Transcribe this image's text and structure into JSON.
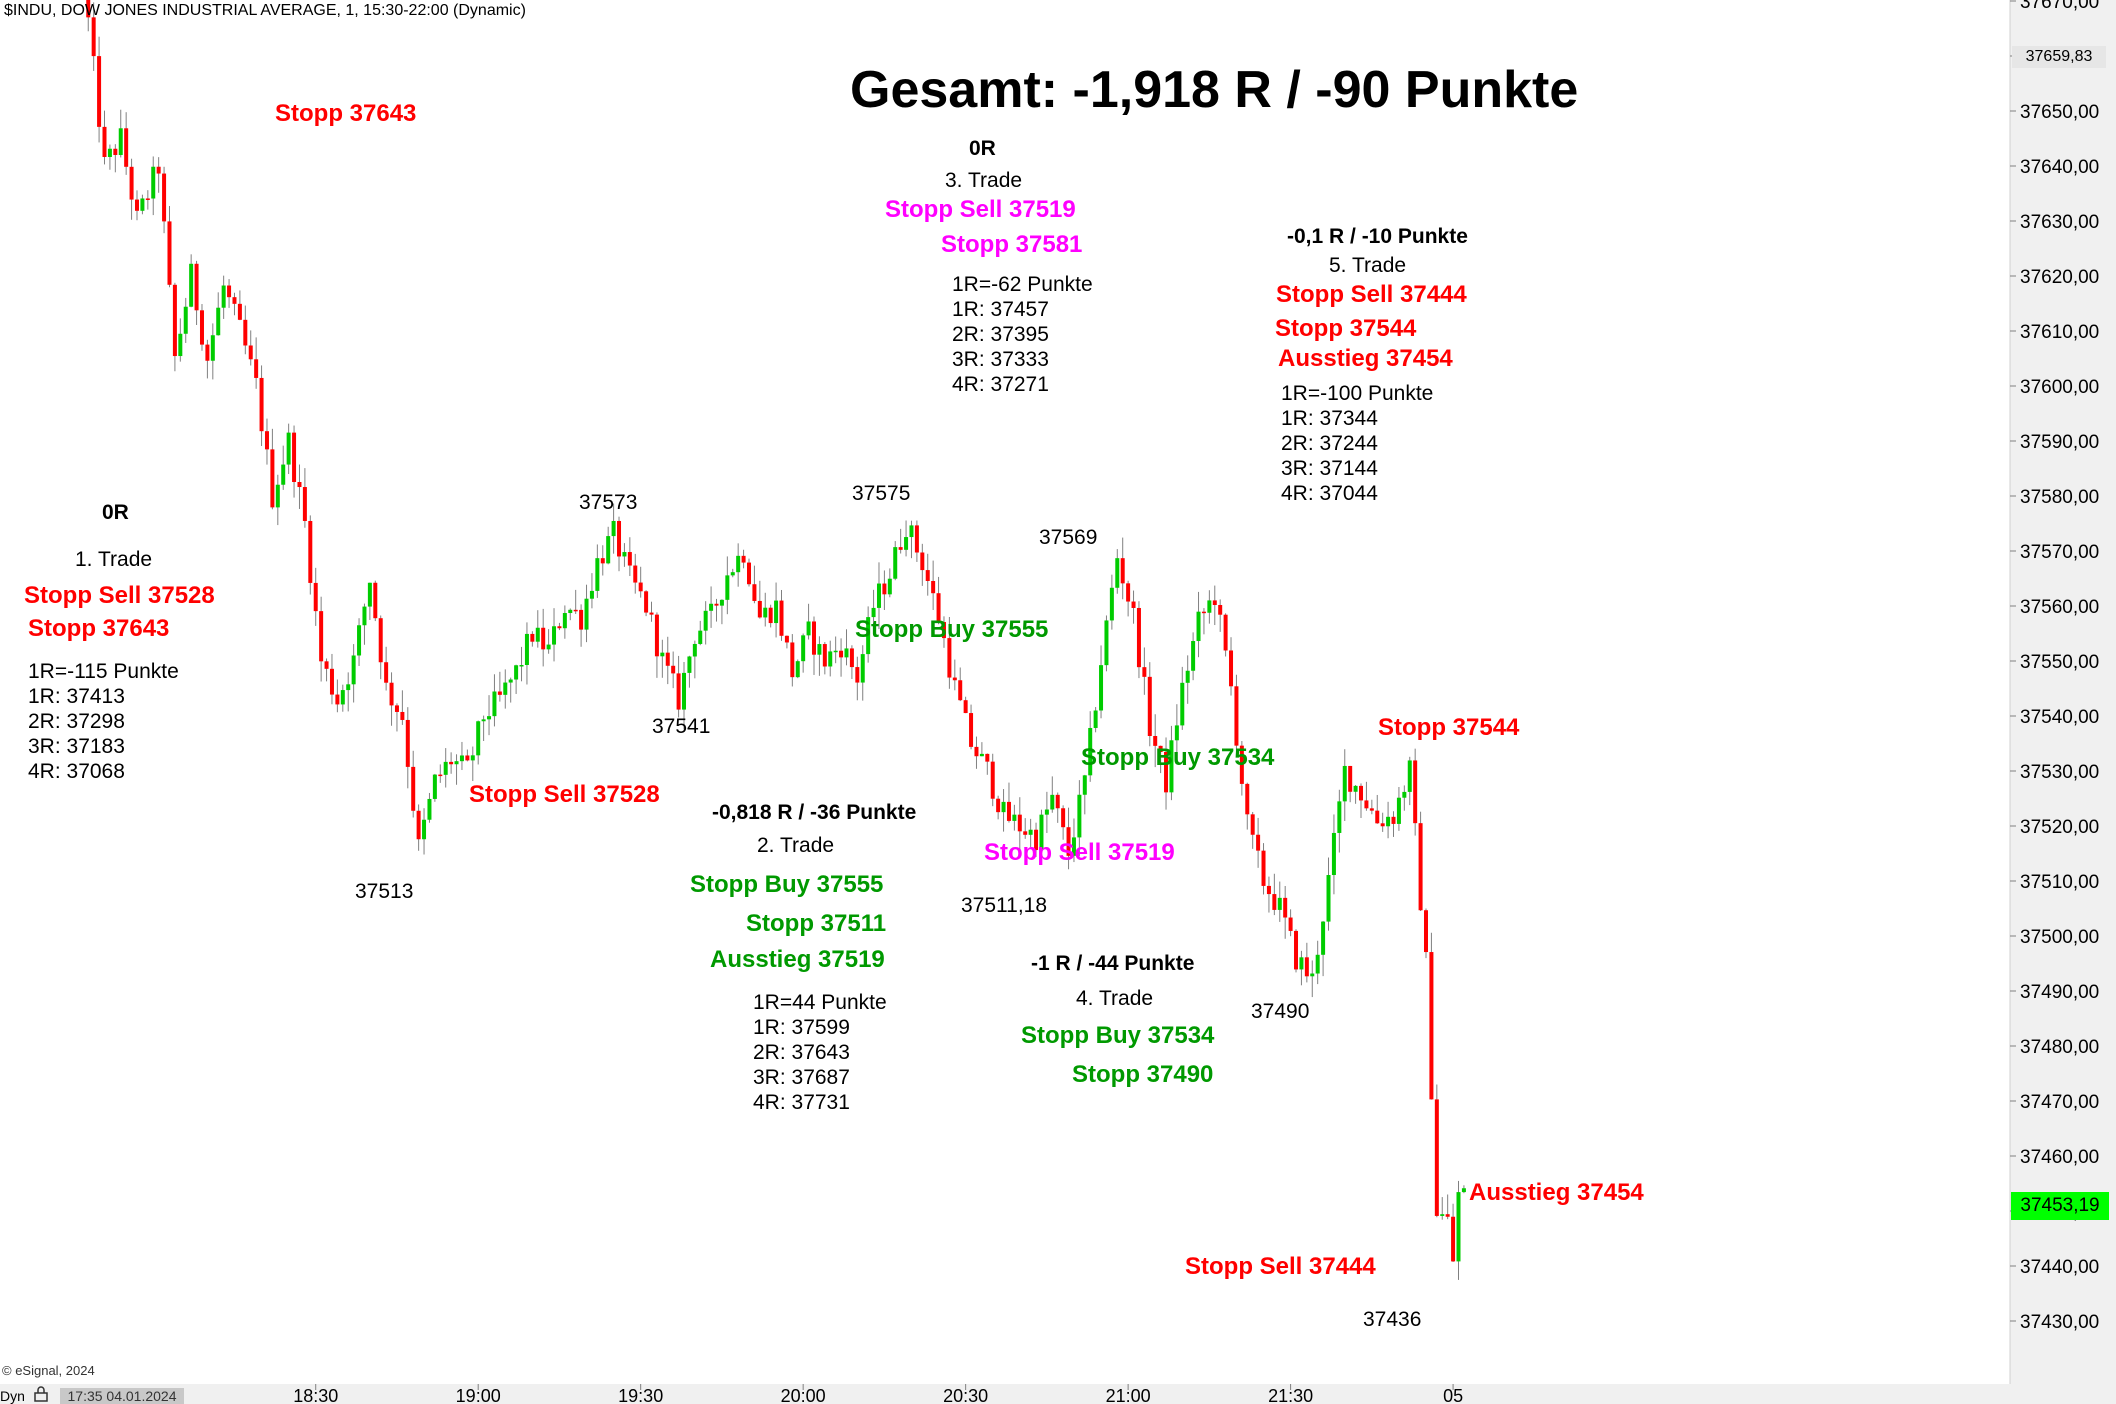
{
  "header": {
    "title": "$INDU, DOW JONES INDUSTRIAL AVERAGE, 1, 15:30-22:00 (Dynamic)"
  },
  "main_title": "Gesamt: -1,918 R / -90 Punkte",
  "footer": {
    "copyright": "© eSignal, 2024",
    "timestamp": "17:35 04.01.2024",
    "mode_label": "Dyn"
  },
  "price_tags": {
    "high": "37659,83",
    "last": "37453,19",
    "last_color": "#00ff00"
  },
  "colors": {
    "up": "#00cc00",
    "down": "#ff0000",
    "wick": "#808080",
    "pink": "#ff00ff",
    "green_text": "#009900"
  },
  "annotations": {
    "trade1": {
      "result": "0R",
      "name": "1. Trade",
      "entry": "Stopp Sell 37528",
      "stop": "Stopp 37643",
      "lines": [
        "1R=-115 Punkte",
        "1R: 37413",
        "2R: 37298",
        "3R: 37183",
        "4R: 37068"
      ]
    },
    "trade2": {
      "result": "-0,818 R / -36 Punkte",
      "name": "2. Trade",
      "entry": "Stopp Buy 37555",
      "stop": "Stopp 37511",
      "exit": "Ausstieg 37519",
      "lines": [
        "1R=44 Punkte",
        "1R: 37599",
        "2R: 37643",
        "3R: 37687",
        "4R: 37731"
      ]
    },
    "trade3": {
      "result": "0R",
      "name": "3. Trade",
      "entry": "Stopp Sell 37519",
      "stop": "Stopp 37581",
      "lines": [
        "1R=-62 Punkte",
        "1R: 37457",
        "2R: 37395",
        "3R: 37333",
        "4R: 37271"
      ]
    },
    "trade4": {
      "result": "-1 R / -44 Punkte",
      "name": "4. Trade",
      "entry": "Stopp Buy 37534",
      "stop": "Stopp 37490"
    },
    "trade5": {
      "result": "-0,1 R / -10 Punkte",
      "name": "5. Trade",
      "entry": "Stopp Sell 37444",
      "stop": "Stopp 37544",
      "exit": "Ausstieg 37454",
      "lines": [
        "1R=-100 Punkte",
        "1R: 37344",
        "2R: 37244",
        "3R: 37144",
        "4R: 37044"
      ]
    },
    "on_chart": {
      "stopp_top": "Stopp 37643",
      "sell_37528": "Stopp Sell 37528",
      "buy_37555": "Stopp Buy 37555",
      "sell_37519": "Stopp Sell 37519",
      "buy_37534": "Stopp Buy 37534",
      "stopp_37544": "Stopp 37544",
      "ausstieg_37454": "Ausstieg 37454",
      "sell_37444": "Stopp Sell 37444"
    },
    "points": {
      "p37513": "37513",
      "p37573": "37573",
      "p37541": "37541",
      "p37575": "37575",
      "p37511": "37511,18",
      "p37569": "37569",
      "p37490": "37490",
      "p37436": "37436"
    }
  },
  "chart_data": {
    "type": "candlestick",
    "instrument": "$INDU, DOW JONES INDUSTRIAL AVERAGE",
    "interval": "1",
    "ylim": [
      37425,
      37670
    ],
    "y_ticks": [
      "37430,00",
      "37440,00",
      "37450,00",
      "37460,00",
      "37470,00",
      "37480,00",
      "37490,00",
      "37500,00",
      "37510,00",
      "37520,00",
      "37530,00",
      "37540,00",
      "37550,00",
      "37560,00",
      "37570,00",
      "37580,00",
      "37590,00",
      "37600,00",
      "37610,00",
      "37620,00",
      "37630,00",
      "37640,00",
      "37650,00",
      "37660,00",
      "37670,00"
    ],
    "x_ticks": [
      "18:30",
      "19:00",
      "19:30",
      "20:00",
      "20:30",
      "21:00",
      "21:30",
      "05"
    ],
    "x_start": "17:45",
    "x_end": "22:00",
    "path": [
      [
        "17:48",
        37675
      ],
      [
        "17:52",
        37640
      ],
      [
        "17:55",
        37645
      ],
      [
        "17:58",
        37630
      ],
      [
        "18:02",
        37640
      ],
      [
        "18:05",
        37605
      ],
      [
        "18:08",
        37620
      ],
      [
        "18:11",
        37605
      ],
      [
        "18:14",
        37618
      ],
      [
        "18:17",
        37610
      ],
      [
        "18:20",
        37600
      ],
      [
        "18:23",
        37580
      ],
      [
        "18:26",
        37590
      ],
      [
        "18:29",
        37575
      ],
      [
        "18:32",
        37550
      ],
      [
        "18:35",
        37543
      ],
      [
        "18:38",
        37550
      ],
      [
        "18:41",
        37565
      ],
      [
        "18:44",
        37545
      ],
      [
        "18:47",
        37540
      ],
      [
        "18:50",
        37516
      ],
      [
        "18:53",
        37528
      ],
      [
        "18:56",
        37532
      ],
      [
        "18:59",
        37530
      ],
      [
        "19:02",
        37540
      ],
      [
        "19:05",
        37543
      ],
      [
        "19:08",
        37548
      ],
      [
        "19:11",
        37555
      ],
      [
        "19:14",
        37552
      ],
      [
        "19:17",
        37560
      ],
      [
        "19:20",
        37558
      ],
      [
        "19:23",
        37568
      ],
      [
        "19:26",
        37573
      ],
      [
        "19:29",
        37565
      ],
      [
        "19:32",
        37560
      ],
      [
        "19:35",
        37550
      ],
      [
        "19:38",
        37543
      ],
      [
        "19:41",
        37555
      ],
      [
        "19:44",
        37558
      ],
      [
        "19:47",
        37566
      ],
      [
        "19:50",
        37570
      ],
      [
        "19:53",
        37558
      ],
      [
        "19:56",
        37560
      ],
      [
        "19:59",
        37548
      ],
      [
        "20:02",
        37555
      ],
      [
        "20:05",
        37550
      ],
      [
        "20:08",
        37553
      ],
      [
        "20:11",
        37547
      ],
      [
        "20:14",
        37560
      ],
      [
        "20:17",
        37566
      ],
      [
        "20:20",
        37575
      ],
      [
        "20:23",
        37568
      ],
      [
        "20:26",
        37558
      ],
      [
        "20:29",
        37545
      ],
      [
        "20:32",
        37535
      ],
      [
        "20:35",
        37530
      ],
      [
        "20:38",
        37522
      ],
      [
        "20:41",
        37520
      ],
      [
        "20:44",
        37518
      ],
      [
        "20:47",
        37525
      ],
      [
        "20:50",
        37515
      ],
      [
        "20:53",
        37528
      ],
      [
        "20:56",
        37550
      ],
      [
        "20:59",
        37569
      ],
      [
        "21:02",
        37558
      ],
      [
        "21:05",
        37538
      ],
      [
        "21:08",
        37528
      ],
      [
        "21:11",
        37545
      ],
      [
        "21:14",
        37557
      ],
      [
        "21:17",
        37562
      ],
      [
        "21:20",
        37545
      ],
      [
        "21:23",
        37520
      ],
      [
        "21:26",
        37510
      ],
      [
        "21:29",
        37505
      ],
      [
        "21:32",
        37496
      ],
      [
        "21:35",
        37492
      ],
      [
        "21:38",
        37510
      ],
      [
        "21:41",
        37530
      ],
      [
        "21:44",
        37526
      ],
      [
        "21:47",
        37521
      ],
      [
        "21:50",
        37522
      ],
      [
        "21:53",
        37530
      ],
      [
        "21:56",
        37495
      ],
      [
        "21:58",
        37450
      ],
      [
        "22:00",
        37448
      ],
      [
        "22:01",
        37441
      ],
      [
        "22:02",
        37453
      ]
    ]
  }
}
